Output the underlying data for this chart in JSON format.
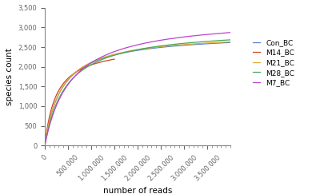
{
  "title": "",
  "xlabel": "number of reads",
  "ylabel": "species count",
  "xlim": [
    0,
    4000000
  ],
  "ylim": [
    0,
    3500
  ],
  "yticks": [
    0,
    500,
    1000,
    1500,
    2000,
    2500,
    3000,
    3500
  ],
  "xtick_values": [
    0,
    500000,
    1000000,
    1500000,
    2000000,
    2500000,
    3000000,
    3500000
  ],
  "series": [
    {
      "label": "Con_BC",
      "color": "#5b7fcc",
      "asymptote": 2850,
      "k": 2.8e-06
    },
    {
      "label": "M14_BC",
      "color": "#cc4422",
      "asymptote": 2560,
      "k": 4e-06,
      "max_x": 1500000
    },
    {
      "label": "M21_BC",
      "color": "#ddaa33",
      "asymptote": 2870,
      "k": 2.8e-06
    },
    {
      "label": "M28_BC",
      "color": "#44aa55",
      "asymptote": 2990,
      "k": 2.2e-06
    },
    {
      "label": "M7_BC",
      "color": "#bb44cc",
      "asymptote": 3270,
      "k": 1.8e-06
    }
  ],
  "background_color": "#ffffff",
  "legend_fontsize": 6.5,
  "axis_fontsize": 7.5,
  "tick_fontsize": 6.0,
  "legend_marker_size": 8
}
